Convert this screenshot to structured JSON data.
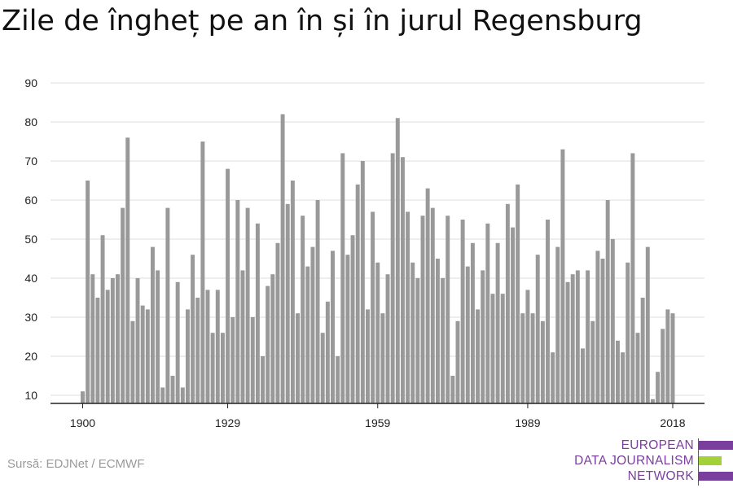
{
  "title": "Zile de îngheț pe an în și în jurul Regensburg",
  "source": "Sursă: EDJNet / ECMWF",
  "logo": {
    "line1": "EUROPEAN",
    "line2": "DATA JOURNALISM",
    "line3": "NETWORK",
    "colors": {
      "purple": "#7a3e9d",
      "green": "#a3d13a"
    }
  },
  "colors": {
    "bar": "#999999",
    "grid": "#dddddd",
    "axis": "#222222"
  },
  "chart_data": {
    "type": "bar",
    "title": "Zile de îngheț pe an în și în jurul Regensburg",
    "xlabel": "",
    "ylabel": "",
    "ylim": [
      8,
      90
    ],
    "y_ticks": [
      10,
      20,
      30,
      40,
      50,
      60,
      70,
      80,
      90
    ],
    "x_ticks": [
      1900,
      1929,
      1959,
      1989,
      2018
    ],
    "grid": true,
    "categories": [
      1900,
      1901,
      1902,
      1903,
      1904,
      1905,
      1906,
      1907,
      1908,
      1909,
      1910,
      1911,
      1912,
      1913,
      1914,
      1915,
      1916,
      1917,
      1918,
      1919,
      1920,
      1921,
      1922,
      1923,
      1924,
      1925,
      1926,
      1927,
      1928,
      1929,
      1930,
      1931,
      1932,
      1933,
      1934,
      1935,
      1936,
      1937,
      1938,
      1939,
      1940,
      1941,
      1942,
      1943,
      1944,
      1945,
      1946,
      1947,
      1948,
      1949,
      1950,
      1951,
      1952,
      1953,
      1954,
      1955,
      1956,
      1957,
      1958,
      1959,
      1960,
      1961,
      1962,
      1963,
      1964,
      1965,
      1966,
      1967,
      1968,
      1969,
      1970,
      1971,
      1972,
      1973,
      1974,
      1975,
      1976,
      1977,
      1978,
      1979,
      1980,
      1981,
      1982,
      1983,
      1984,
      1985,
      1986,
      1987,
      1988,
      1989,
      1990,
      1991,
      1992,
      1993,
      1994,
      1995,
      1996,
      1997,
      1998,
      1999,
      2000,
      2001,
      2002,
      2003,
      2004,
      2005,
      2006,
      2007,
      2008,
      2009,
      2010,
      2011,
      2012,
      2013,
      2014,
      2015,
      2016,
      2017,
      2018
    ],
    "values": [
      11,
      65,
      41,
      35,
      51,
      37,
      40,
      41,
      58,
      76,
      29,
      40,
      33,
      32,
      48,
      42,
      12,
      58,
      15,
      39,
      12,
      32,
      46,
      35,
      75,
      37,
      26,
      37,
      26,
      68,
      30,
      60,
      42,
      58,
      30,
      54,
      20,
      38,
      41,
      49,
      82,
      59,
      65,
      31,
      56,
      43,
      48,
      60,
      26,
      34,
      47,
      20,
      72,
      46,
      51,
      64,
      70,
      32,
      57,
      44,
      31,
      41,
      72,
      81,
      71,
      57,
      44,
      40,
      56,
      63,
      58,
      45,
      40,
      56,
      15,
      29,
      55,
      43,
      49,
      32,
      42,
      54,
      36,
      49,
      36,
      59,
      53,
      64,
      31,
      37,
      31,
      46,
      29,
      55,
      21,
      48,
      73,
      39,
      41,
      42,
      22,
      42,
      29,
      47,
      45,
      60,
      50,
      24,
      21,
      44,
      72,
      26,
      35,
      48,
      9,
      16,
      27,
      32,
      31
    ]
  }
}
